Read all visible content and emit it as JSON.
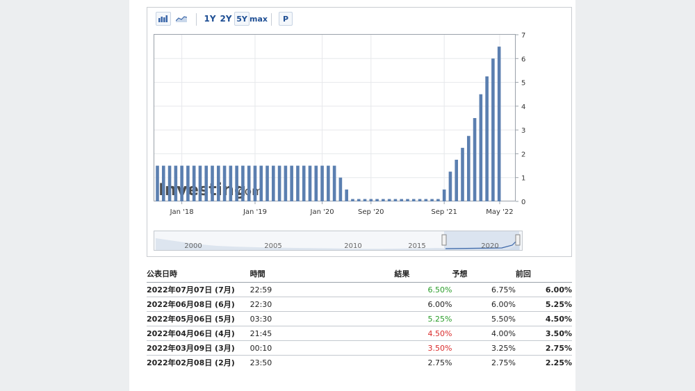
{
  "toolbar": {
    "periods": [
      "1Y",
      "2Y",
      "5Y",
      "max"
    ],
    "active_period": "5Y",
    "p_label": "P",
    "icons": [
      "bar-chart-icon",
      "area-chart-icon"
    ]
  },
  "watermark": {
    "brand": "Investing",
    "suffix": ".com"
  },
  "chart_data": {
    "type": "bar",
    "color": "#5b7fb0",
    "ylim": [
      0,
      7
    ],
    "yticks": [
      "0",
      "1",
      "2",
      "3",
      "4",
      "5",
      "6",
      "7"
    ],
    "x_tick_labels": [
      "Jan '18",
      "Jan '19",
      "Jan '20",
      "Sep '20",
      "Sep '21",
      "May '22"
    ],
    "values": [
      1.5,
      1.5,
      1.5,
      1.5,
      1.5,
      1.5,
      1.5,
      1.5,
      1.5,
      1.5,
      1.5,
      1.5,
      1.5,
      1.5,
      1.5,
      1.5,
      1.5,
      1.5,
      1.5,
      1.5,
      1.5,
      1.5,
      1.5,
      1.5,
      1.5,
      1.5,
      1.5,
      1.5,
      1.5,
      1.5,
      1.0,
      0.5,
      0.1,
      0.1,
      0.1,
      0.1,
      0.1,
      0.1,
      0.1,
      0.1,
      0.1,
      0.1,
      0.1,
      0.1,
      0.1,
      0.1,
      0.1,
      0.5,
      1.25,
      1.75,
      2.25,
      2.75,
      3.5,
      4.5,
      5.25,
      6.0,
      6.5
    ],
    "navigator": {
      "years": [
        "2000",
        "2005",
        "2010",
        "2015",
        "2020"
      ]
    }
  },
  "table": {
    "headers": [
      "公表日時",
      "時間",
      "結果",
      "予想",
      "前回"
    ],
    "rows": [
      {
        "date": "2022年07月07日 (7月)",
        "time": "22:59",
        "actual": "6.50%",
        "actual_color": "#2a9d2a",
        "forecast": "6.75%",
        "previous": "6.00%"
      },
      {
        "date": "2022年06月08日 (6月)",
        "time": "22:30",
        "actual": "6.00%",
        "actual_color": "#222222",
        "forecast": "6.00%",
        "previous": "5.25%"
      },
      {
        "date": "2022年05月06日 (5月)",
        "time": "03:30",
        "actual": "5.25%",
        "actual_color": "#2a9d2a",
        "forecast": "5.50%",
        "previous": "4.50%"
      },
      {
        "date": "2022年04月06日 (4月)",
        "time": "21:45",
        "actual": "4.50%",
        "actual_color": "#d92b2b",
        "forecast": "4.00%",
        "previous": "3.50%"
      },
      {
        "date": "2022年03月09日 (3月)",
        "time": "00:10",
        "actual": "3.50%",
        "actual_color": "#d92b2b",
        "forecast": "3.25%",
        "previous": "2.75%"
      },
      {
        "date": "2022年02月08日 (2月)",
        "time": "23:50",
        "actual": "2.75%",
        "actual_color": "#222222",
        "forecast": "2.75%",
        "previous": "2.25%"
      }
    ]
  }
}
